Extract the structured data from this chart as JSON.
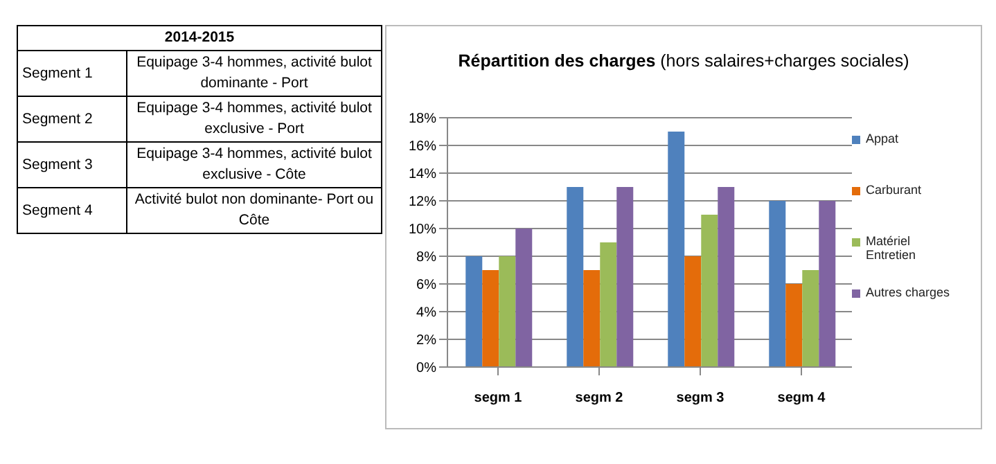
{
  "chart_data": [
    {
      "type": "other",
      "title": "2014-2015",
      "annotations": [
        "Segment 1",
        "Equipage 3-4 hommes, activité bulot dominante - Port",
        "Segment 2",
        "Equipage 3-4 hommes, activité bulot  exclusive - Port",
        "Segment 3",
        "Equipage 3-4 hommes, activité bulot exclusive - Côte",
        "Segment 4",
        "Activité bulot non dominante- Port ou Côte"
      ]
    },
    {
      "type": "bar",
      "title": "Répartition des charges",
      "subtitle": "(hors salaires+charges sociales)",
      "categories": [
        "segm 1",
        "segm 2",
        "segm 3",
        "segm 4"
      ],
      "series": [
        {
          "name": "Appat",
          "color": "#4f81bd",
          "values": [
            8,
            13,
            17,
            12
          ]
        },
        {
          "name": "Carburant",
          "color": "#e46c0a",
          "values": [
            7,
            7,
            8,
            6
          ]
        },
        {
          "name": "Matériel Entretien",
          "color": "#9bbb59",
          "values": [
            8,
            9,
            11,
            7
          ]
        },
        {
          "name": "Autres charges",
          "color": "#8064a2",
          "values": [
            10,
            13,
            13,
            12
          ]
        }
      ],
      "ylim": [
        0,
        18
      ],
      "yticks": [
        {
          "value": 0,
          "label": "0%"
        },
        {
          "value": 2,
          "label": "2%"
        },
        {
          "value": 4,
          "label": "4%"
        },
        {
          "value": 6,
          "label": "6%"
        },
        {
          "value": 8,
          "label": "8%"
        },
        {
          "value": 10,
          "label": "10%"
        },
        {
          "value": 12,
          "label": "12%"
        },
        {
          "value": 14,
          "label": "14%"
        },
        {
          "value": 16,
          "label": "16%"
        },
        {
          "value": 18,
          "label": "18%"
        }
      ],
      "grid": "y",
      "legend": "right"
    }
  ]
}
